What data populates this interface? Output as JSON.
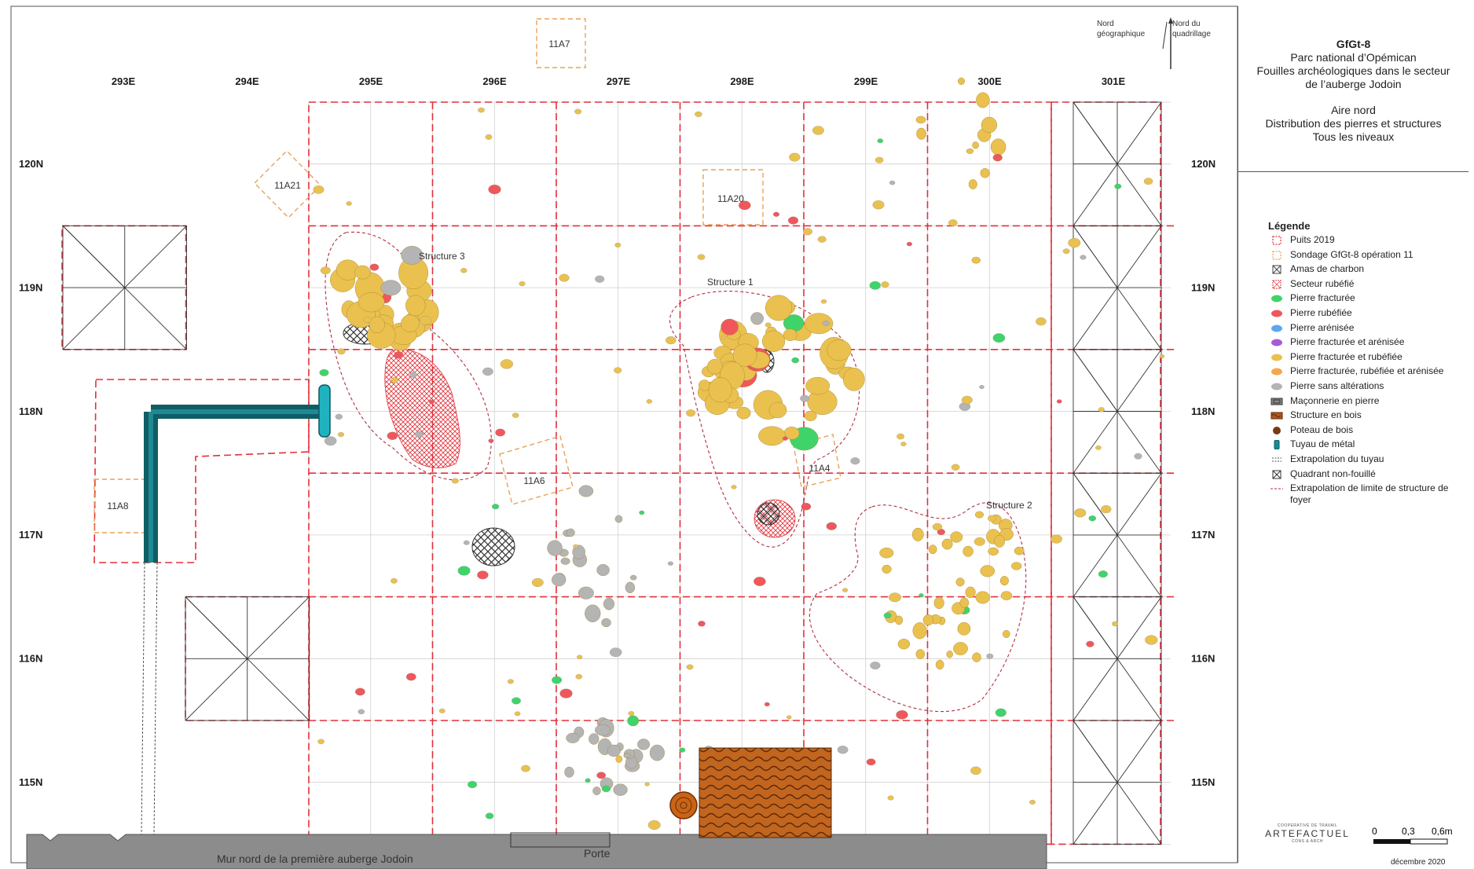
{
  "title_block": {
    "site_code": "GfGt-8",
    "park": "Parc national d’Opémican",
    "line1": "Fouilles archéologiques dans le secteur",
    "line2": "de l’auberge Jodoin",
    "area": "Aire nord",
    "subject": "Distribution des pierres et structures",
    "levels": "Tous les niveaux"
  },
  "north": {
    "geo": "Nord\ngéographique",
    "grid": "Nord du\nquadrillage"
  },
  "grid": {
    "east_labels": [
      "293E",
      "294E",
      "295E",
      "296E",
      "297E",
      "298E",
      "299E",
      "300E",
      "301E"
    ],
    "north_labels": [
      "120N",
      "119N",
      "118N",
      "117N",
      "116N",
      "115N"
    ]
  },
  "sondage_labels": [
    "11A7",
    "11A21",
    "11A20",
    "11A6",
    "11A4",
    "11A8"
  ],
  "structure_labels": [
    "Structure 3",
    "Structure 1",
    "Structure 2"
  ],
  "bottom_labels": {
    "wall": "Mur nord  de la première auberge Jodoin",
    "door": "Porte"
  },
  "legend": {
    "title": "Légende",
    "items": [
      {
        "icon": "red-dashed-square-icon",
        "label": "Puits 2019",
        "color": "#e2303a"
      },
      {
        "icon": "orange-dashed-square-icon",
        "label": "Sondage GfGt-8 opération 11",
        "color": "#e8a15a"
      },
      {
        "icon": "crossed-box-icon",
        "label": "Amas de charbon",
        "color": "#444444"
      },
      {
        "icon": "red-hatched-box-icon",
        "label": "Secteur rubéfié",
        "color": "#e2303a"
      },
      {
        "icon": "green-stone-icon",
        "label": "Pierre fracturée",
        "color": "#3fd46a"
      },
      {
        "icon": "red-stone-icon",
        "label": "Pierre rubéfiée",
        "color": "#f0575b"
      },
      {
        "icon": "blue-stone-icon",
        "label": "Pierre arénisée",
        "color": "#5aa9f0"
      },
      {
        "icon": "purple-stone-icon",
        "label": "Pierre fracturée et arénisée",
        "color": "#a85ad8"
      },
      {
        "icon": "yellow-stone-icon",
        "label": "Pierre fracturée et rubéfiée",
        "color": "#eac14f"
      },
      {
        "icon": "orange-stone-icon",
        "label": "Pierre fracturée, rubéfiée et arénisée",
        "color": "#f4a84c"
      },
      {
        "icon": "grey-stone-icon",
        "label": "Pierre sans altérations",
        "color": "#b4b4b4"
      },
      {
        "icon": "masonry-icon",
        "label": "Maçonnerie en pierre",
        "color": "#8a8a8a"
      },
      {
        "icon": "wood-structure-icon",
        "label": "Structure en bois",
        "color": "#b5561c"
      },
      {
        "icon": "wood-post-icon",
        "label": "Poteau de bois",
        "color": "#7a3a12"
      },
      {
        "icon": "metal-pipe-icon",
        "label": "Tuyau de métal",
        "color": "#1a8a94"
      },
      {
        "icon": "pipe-extrapolation-icon",
        "label": "Extrapolation du tuyau",
        "color": "#555555"
      },
      {
        "icon": "unexcavated-quadrant-icon",
        "label": "Quadrant non-fouillé",
        "color": "#333333"
      },
      {
        "icon": "structure-limit-icon",
        "label": "Extrapolation de limite de structure de foyer",
        "color": "#b03040"
      }
    ]
  },
  "credits": {
    "logo_top": "COOPERATIVE DE TRAVAIL",
    "logo_brand": "ARTEFACTUEL",
    "logo_bottom": "CONS & ARCH",
    "scale": [
      "0",
      "0,3",
      "0,6m"
    ],
    "date": "décembre 2020"
  },
  "colors": {
    "grid_red": "#e2303a",
    "sondage_orange": "#e8a15a",
    "stone_yellow": "#eac14f",
    "stone_green": "#3fd46a",
    "stone_red": "#f0575b",
    "stone_grey": "#b4b4b4",
    "wall_grey": "#8c8c8c",
    "wood": "#b5561c",
    "pipe": "#1a8a94"
  }
}
